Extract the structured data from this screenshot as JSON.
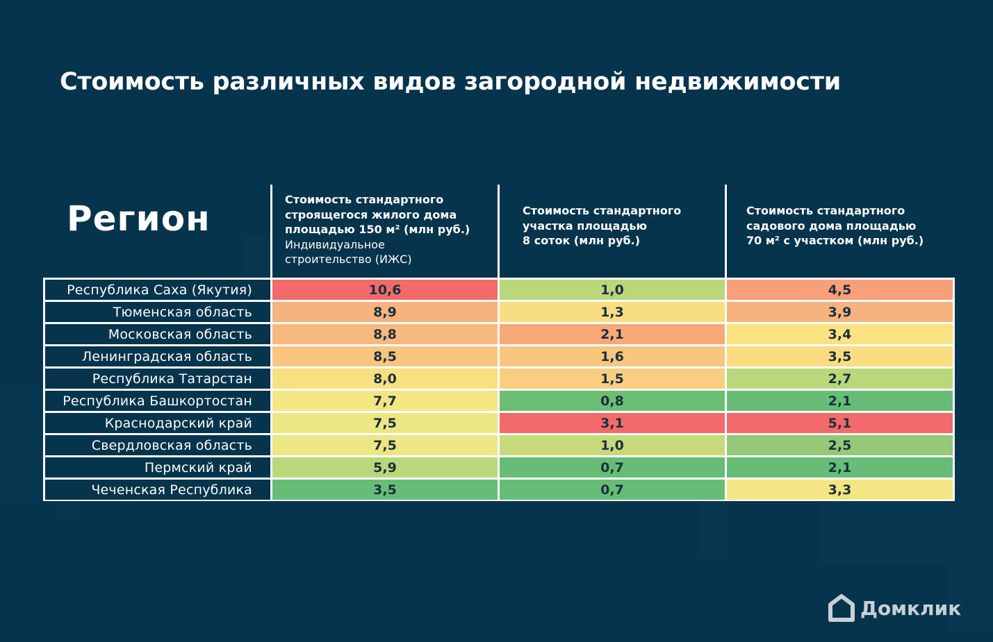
{
  "title": "Стоимость различных видов загородной недвижимости",
  "brand": "Домклик",
  "colors": {
    "background": "#06344c",
    "text": "#ffffff",
    "scale_high": "#f26b6b",
    "scale_mid": "#f9e27f",
    "scale_low": "#66bd75"
  },
  "chart_data": {
    "type": "table",
    "title": "Стоимость различных видов загородной недвижимости",
    "row_header": "Регион",
    "columns": [
      {
        "bold": "Стоимость стандартного строящегося жилого дома площадью 150 м² (млн руб.)",
        "bold_lines": [
          "Стоимость стандартного",
          "строящегося жилого дома",
          "площадью 150 м² (млн руб.)"
        ],
        "note_lines": [
          "Индивидуальное",
          "строительство (ИЖС)"
        ]
      },
      {
        "bold": "Стоимость стандартного участка площадью 8 соток (млн руб.)",
        "bold_lines": [
          "Стоимость стандартного",
          "участка площадью",
          "8 соток (млн руб.)"
        ],
        "note_lines": []
      },
      {
        "bold": "Стоимость стандартного садового дома площадью 70 м² с участком (млн руб.)",
        "bold_lines": [
          "Стоимость стандартного",
          "садового дома площадью",
          "70 м² с участком (млн руб.)"
        ],
        "note_lines": []
      }
    ],
    "rows": [
      {
        "region": "Республика Саха (Якутия)",
        "values": [
          "10,6",
          "1,0",
          "4,5"
        ],
        "colors": [
          "#f26b6b",
          "#b8d67a",
          "#f7a07a"
        ]
      },
      {
        "region": "Тюменская область",
        "values": [
          "8,9",
          "1,3",
          "3,9"
        ],
        "colors": [
          "#f7b37d",
          "#f8de80",
          "#f7b37d"
        ]
      },
      {
        "region": "Московская область",
        "values": [
          "8,8",
          "2,1",
          "3,4"
        ],
        "colors": [
          "#f8b97e",
          "#f7a97a",
          "#f9e27f"
        ]
      },
      {
        "region": "Ленинградская область",
        "values": [
          "8,5",
          "1,6",
          "3,5"
        ],
        "colors": [
          "#f8c67f",
          "#f8c67f",
          "#f9dd80"
        ]
      },
      {
        "region": "Республика Татарстан",
        "values": [
          "8,0",
          "1,5",
          "2,7"
        ],
        "colors": [
          "#f9e07f",
          "#f8cf80",
          "#b8d67a"
        ]
      },
      {
        "region": "Республика Башкортостан",
        "values": [
          "7,7",
          "0,8",
          "2,1"
        ],
        "colors": [
          "#f3e584",
          "#6dbe75",
          "#66bd75"
        ]
      },
      {
        "region": "Краснодарский край",
        "values": [
          "7,5",
          "3,1",
          "5,1"
        ],
        "colors": [
          "#ede685",
          "#f26b6b",
          "#f26b6b"
        ]
      },
      {
        "region": "Свердловская область",
        "values": [
          "7,5",
          "1,0",
          "2,5"
        ],
        "colors": [
          "#ede685",
          "#c6da7c",
          "#95c979"
        ]
      },
      {
        "region": "Пермский край",
        "values": [
          "5,9",
          "0,7",
          "2,1"
        ],
        "colors": [
          "#b9d77b",
          "#66bd75",
          "#66bd75"
        ]
      },
      {
        "region": "Чеченская Республика",
        "values": [
          "3,5",
          "0,7",
          "3,3"
        ],
        "colors": [
          "#66bd75",
          "#66bd75",
          "#f4e584"
        ]
      }
    ]
  }
}
